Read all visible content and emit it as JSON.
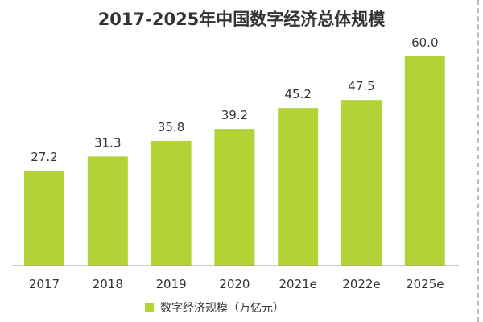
{
  "chart_data": {
    "type": "bar",
    "title": "2017-2025年中国数字经济总体规模",
    "categories": [
      "2017",
      "2018",
      "2019",
      "2020",
      "2021e",
      "2022e",
      "2025e"
    ],
    "series": [
      {
        "name": "数字经济规模（万亿元）",
        "values": [
          27.2,
          31.3,
          35.8,
          39.2,
          45.2,
          47.5,
          60.0
        ]
      }
    ],
    "data_labels": [
      "27.2",
      "31.3",
      "35.8",
      "39.2",
      "45.2",
      "47.5",
      "60.0"
    ],
    "ylim": [
      0,
      60
    ],
    "grid": false,
    "legend_position": "bottom",
    "color": "#b2d235"
  }
}
